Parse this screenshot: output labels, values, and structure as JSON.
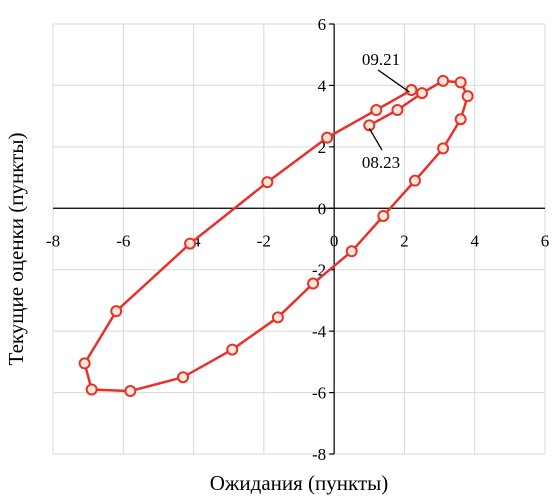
{
  "chart_data": {
    "type": "scatter",
    "xlabel": "Ожидания (пункты)",
    "ylabel": "Текущие оценки (пункты)",
    "xlim": [
      -8,
      6
    ],
    "ylim": [
      -8,
      6
    ],
    "xticks": [
      -8,
      -6,
      -4,
      -2,
      0,
      2,
      4,
      6
    ],
    "yticks": [
      -8,
      -6,
      -4,
      -2,
      0,
      2,
      4,
      6
    ],
    "grid": true,
    "series_color": "#e8312a",
    "marker_fill": "#fde9d9",
    "series": [
      {
        "x": [
          2.2,
          1.2,
          -0.2,
          -1.9,
          -4.1,
          -6.2,
          -7.1,
          -6.9,
          -5.8,
          -4.3,
          -2.9,
          -1.6,
          -0.6,
          0.5,
          1.4,
          2.3,
          3.1,
          3.6,
          3.8,
          3.6,
          3.1,
          2.5,
          1.8,
          1.0
        ],
        "y": [
          3.85,
          3.2,
          2.3,
          0.85,
          -1.15,
          -3.35,
          -5.05,
          -5.9,
          -5.95,
          -5.5,
          -4.6,
          -3.55,
          -2.45,
          -1.4,
          -0.25,
          0.9,
          1.95,
          2.9,
          3.65,
          4.1,
          4.15,
          3.75,
          3.2,
          2.7
        ]
      }
    ],
    "annotations": [
      {
        "text": "09.21",
        "x": 2.2,
        "y": 3.85
      },
      {
        "text": "08.23",
        "x": 1.0,
        "y": 2.7
      }
    ]
  }
}
